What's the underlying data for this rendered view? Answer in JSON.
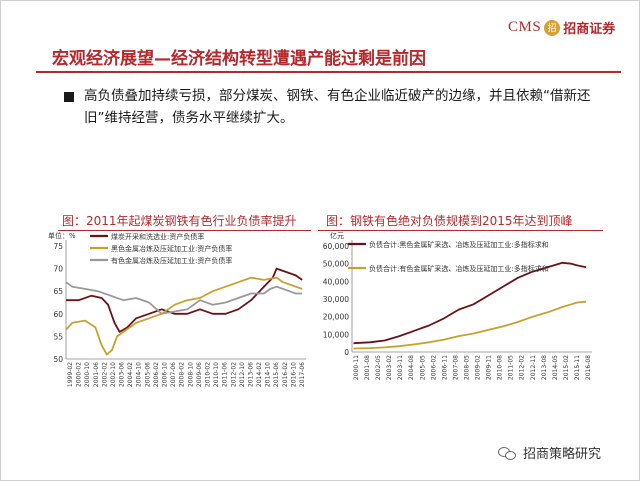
{
  "logo": {
    "brand": "CMS",
    "badge": "招",
    "name": "招商证券"
  },
  "slide": {
    "title": "宏观经济展望—经济结构转型遭遇产能过剩是前因",
    "body": "高负债叠加持续亏损，部分煤炭、钢铁、有色企业临近破产的边缘，并且依赖“借新还旧”维持经营，债务水平继续扩大。"
  },
  "watermark": {
    "text": "招商策略研究",
    "icon": "wechat-icon"
  },
  "colors": {
    "accent": "#b5292d",
    "series_dark": "#6b1216",
    "series_gold": "#c9a02e",
    "series_gray": "#999999"
  },
  "chart_data": [
    {
      "type": "line",
      "title": "图：2011年起煤炭钢铁有色行业负债率提升",
      "ylabel": "单位：%",
      "ylim": [
        50,
        75
      ],
      "yticks": [
        "75",
        "70",
        "65",
        "60",
        "55",
        "50"
      ],
      "x_tick_labels": [
        "1999-02",
        "2000-02",
        "2000-10",
        "2001-06",
        "2002-02",
        "2002-10",
        "2003-06",
        "2004-02",
        "2004-10",
        "2005-06",
        "2006-02",
        "2006-10",
        "2007-06",
        "2008-02",
        "2008-10",
        "2009-06",
        "2010-02",
        "2010-10",
        "2011-06",
        "2012-02",
        "2012-10",
        "2013-06",
        "2014-02",
        "2014-10",
        "2015-06",
        "2016-02",
        "2016-10",
        "2017-06"
      ],
      "grid": false,
      "legend": "top-left",
      "series": [
        {
          "name": "煤炭开采和洗选业:资产负债率",
          "x": [
            1999.0,
            2000.0,
            2001.0,
            2001.8,
            2002.3,
            2002.8,
            2003.2,
            2003.8,
            2004.5,
            2005.5,
            2006.5,
            2007.5,
            2008.5,
            2009.5,
            2010.5,
            2011.5,
            2012.5,
            2013.5,
            2014.5,
            2015.2,
            2015.5,
            2016.0,
            2016.5,
            2017.0,
            2017.5
          ],
          "values": [
            63,
            63,
            64,
            63.5,
            62,
            58,
            56,
            57,
            59,
            60,
            61,
            60,
            60,
            61,
            60,
            60,
            61,
            63,
            66,
            68,
            70,
            69.5,
            69,
            68.5,
            67.5
          ]
        },
        {
          "name": "黑色金属冶炼及压延加工业:资产负债率",
          "x": [
            1999.0,
            1999.5,
            2000.5,
            2001.3,
            2001.8,
            2002.2,
            2002.6,
            2003.0,
            2003.5,
            2004.5,
            2005.5,
            2006.5,
            2007.5,
            2008.5,
            2009.5,
            2010.5,
            2011.5,
            2012.5,
            2013.5,
            2014.5,
            2015.5,
            2016.0,
            2016.5,
            2017.0,
            2017.5
          ],
          "values": [
            56.5,
            58,
            58.5,
            57,
            53,
            51,
            52,
            55,
            56,
            58,
            59,
            60,
            62,
            63,
            63.5,
            65,
            66,
            67,
            68,
            67.5,
            68,
            67,
            66.5,
            66,
            65.5
          ]
        },
        {
          "name": "有色金属冶炼及压延加工业:资产负债率",
          "x": [
            1999.0,
            1999.5,
            2000.5,
            2001.5,
            2002.5,
            2003.5,
            2004.5,
            2005.5,
            2006.5,
            2007.5,
            2008.5,
            2009.5,
            2010.5,
            2011.5,
            2012.5,
            2013.5,
            2014.5,
            2015.0,
            2015.5,
            2016.0,
            2016.5,
            2017.0,
            2017.5
          ],
          "values": [
            67,
            66,
            65.5,
            65,
            64,
            63,
            63.5,
            62.5,
            60,
            60.5,
            61,
            63,
            62,
            62.5,
            63.5,
            64.5,
            64.5,
            65.5,
            66,
            65.5,
            65,
            64.5,
            64.5
          ]
        }
      ]
    },
    {
      "type": "line",
      "title": "图：钢铁有色绝对负债规模到2015年达到顶峰",
      "ylabel": "亿元",
      "ylim": [
        0,
        60000
      ],
      "yticks": [
        "60,000",
        "50,000",
        "40,000",
        "30,000",
        "20,000",
        "10,000",
        "0"
      ],
      "x_tick_labels": [
        "2000-11",
        "2001-08",
        "2002-05",
        "2003-02",
        "2003-11",
        "2004-08",
        "2005-05",
        "2006-02",
        "2006-11",
        "2007-08",
        "2008-05",
        "2009-02",
        "2009-11",
        "2010-08",
        "2011-05",
        "2012-02",
        "2012-11",
        "2013-08",
        "2014-05",
        "2015-02",
        "2015-11",
        "2016-08"
      ],
      "grid": false,
      "legend": "top-left",
      "series": [
        {
          "name": "负债合计:黑色金属矿采选、冶炼及压延加工业:多指标求和",
          "x": [
            2000.9,
            2002,
            2003,
            2004,
            2005,
            2006,
            2007,
            2008,
            2009,
            2010,
            2011,
            2012,
            2013,
            2014,
            2015,
            2015.6,
            2016,
            2016.6
          ],
          "values": [
            5000,
            5500,
            6500,
            9000,
            12000,
            15000,
            19000,
            24000,
            27000,
            32000,
            37000,
            42000,
            45500,
            48000,
            50500,
            50000,
            49000,
            48000
          ]
        },
        {
          "name": "负债合计:有色金属矿采选、冶炼及压延加工业:多指标求和",
          "x": [
            2000.9,
            2002,
            2003,
            2004,
            2005,
            2006,
            2007,
            2008,
            2009,
            2010,
            2011,
            2012,
            2013,
            2014,
            2015,
            2015.6,
            2016,
            2016.6
          ],
          "values": [
            2000,
            2200,
            2600,
            3300,
            4300,
            5500,
            7000,
            9000,
            10500,
            12500,
            14500,
            17000,
            20000,
            22500,
            25500,
            27000,
            28000,
            28500
          ]
        }
      ]
    }
  ]
}
